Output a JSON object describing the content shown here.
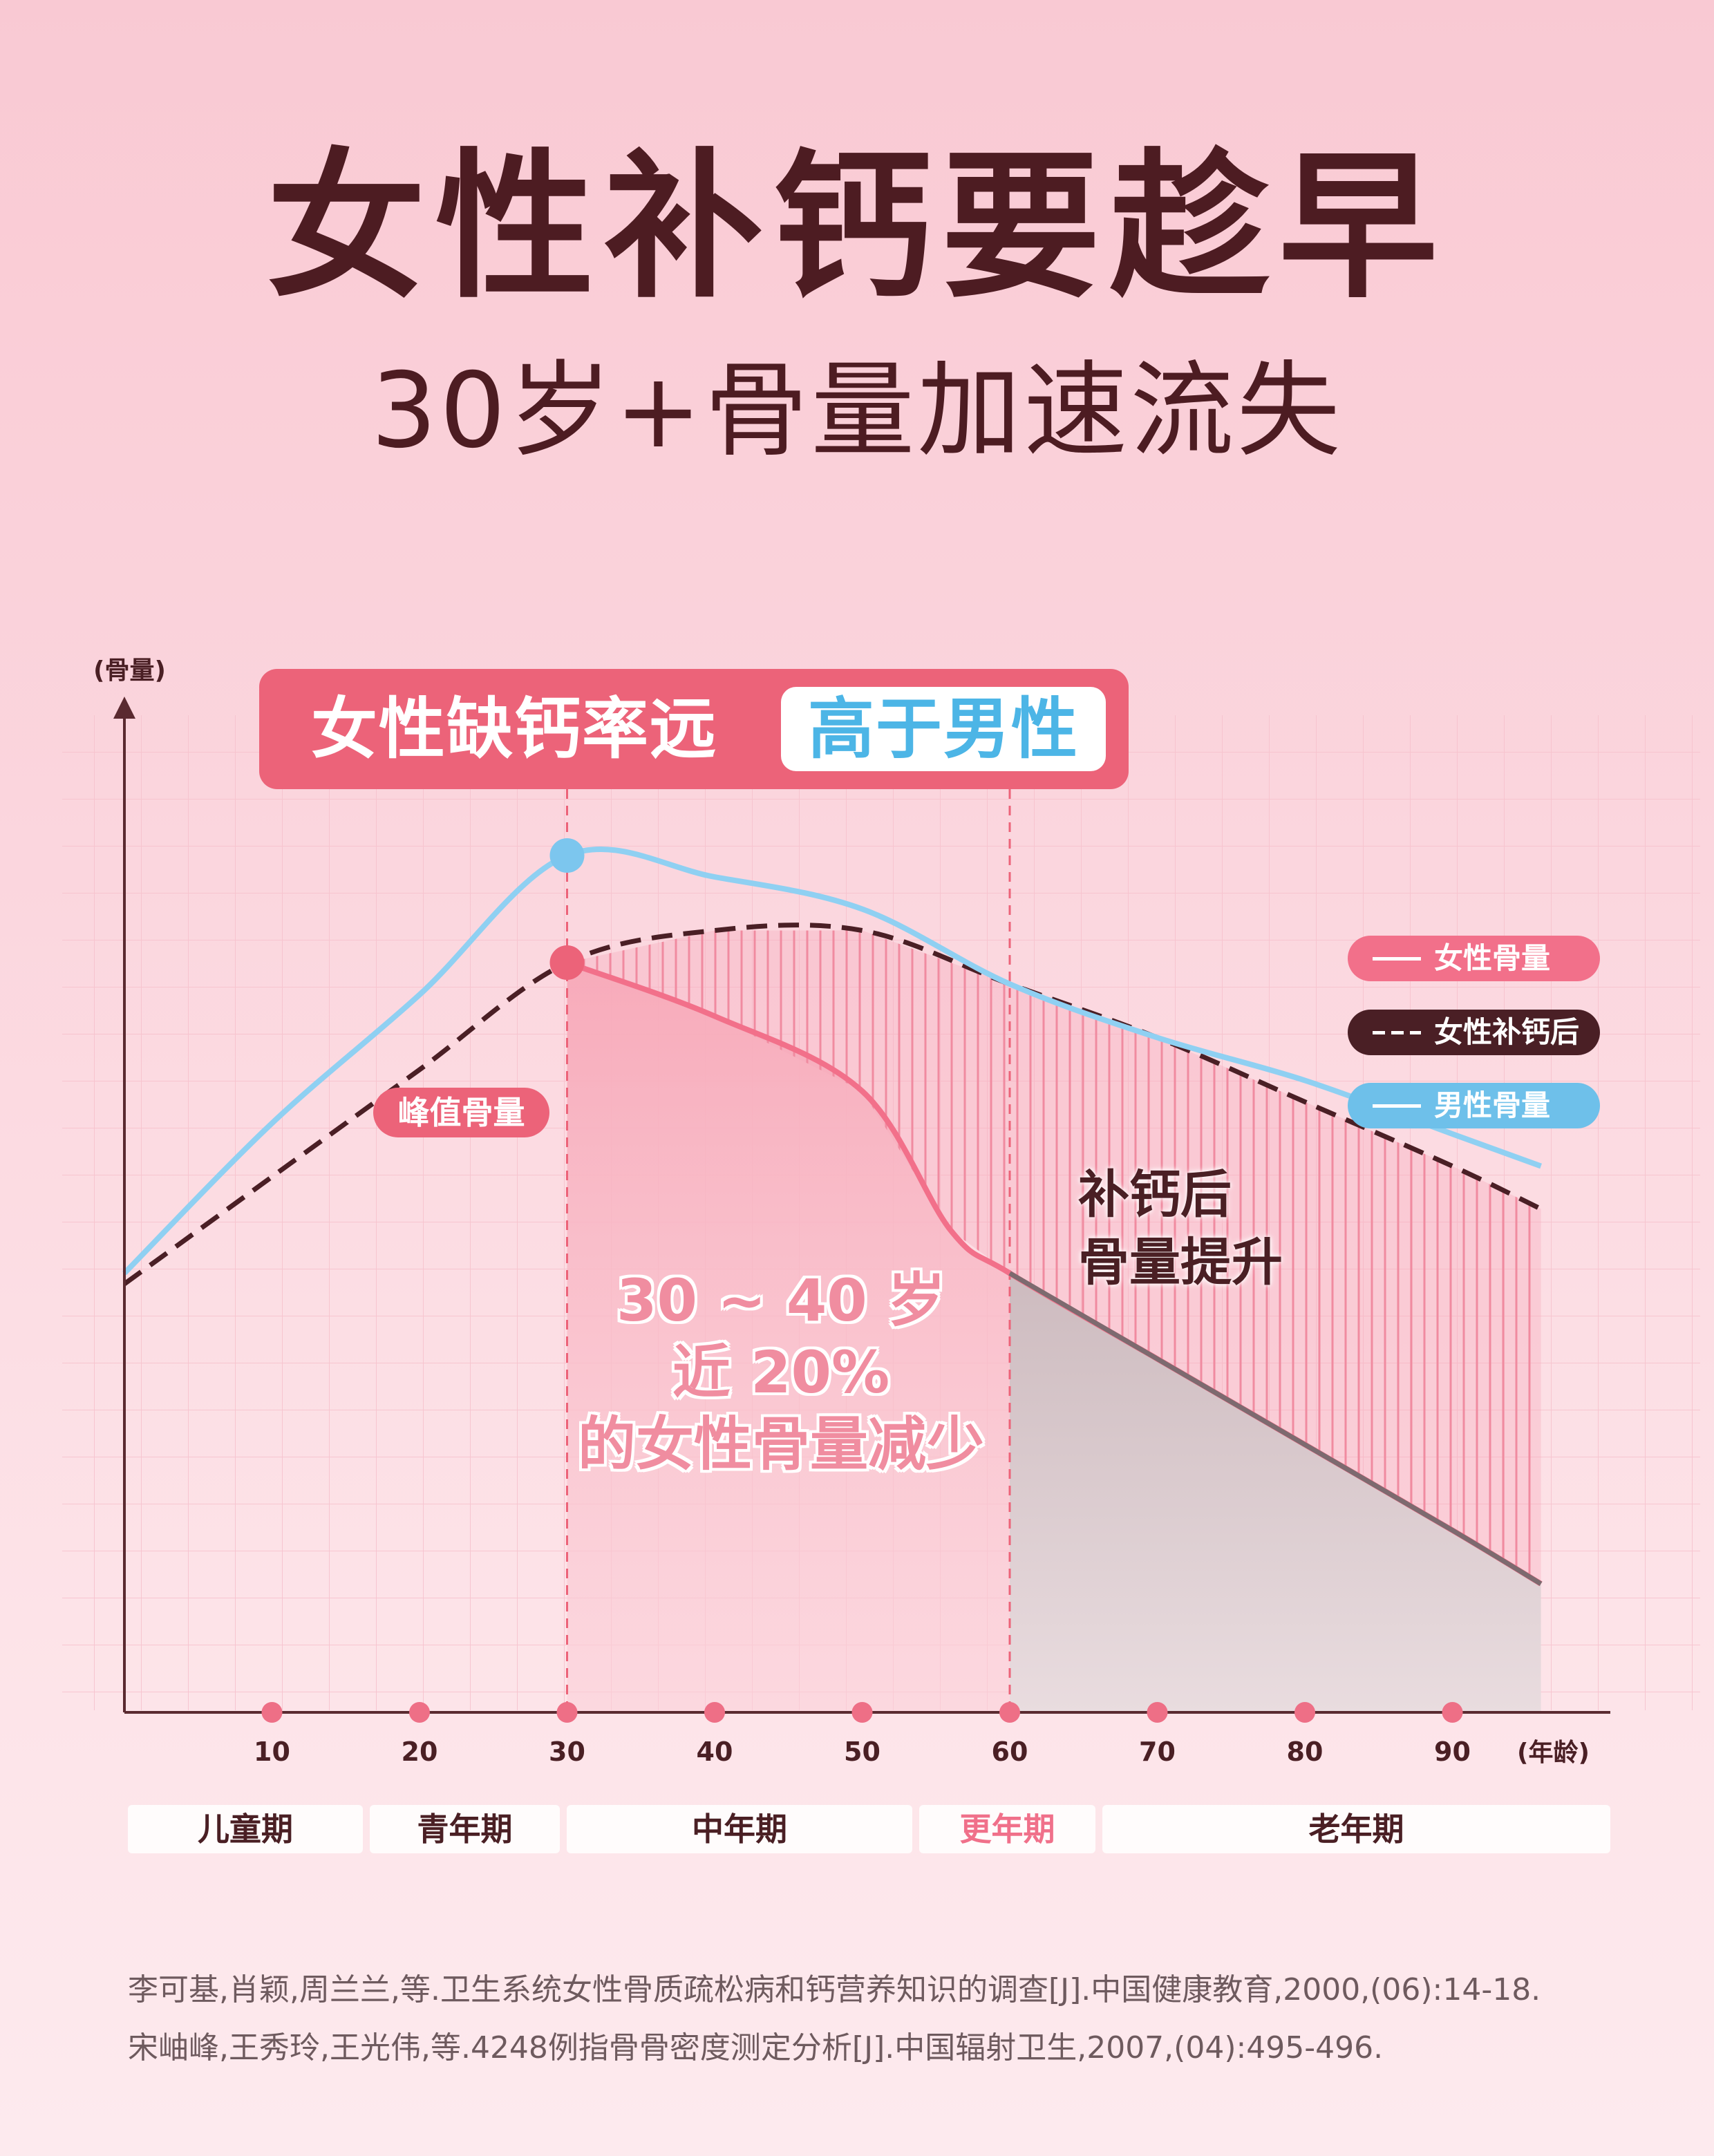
{
  "title": "女性补钙要趁早",
  "subtitle": "30岁+骨量加速流失",
  "banner": {
    "left": "女性缺钙率远",
    "right": "高于男性"
  },
  "chart_data": {
    "type": "line",
    "ylabel": "(骨量)",
    "xlabel": "(年龄)",
    "x_ticks": [
      10,
      20,
      30,
      40,
      50,
      60,
      70,
      80,
      90
    ],
    "xlim": [
      0,
      100
    ],
    "ylim": [
      0,
      100
    ],
    "grid": true,
    "legend_position": "right",
    "series": [
      {
        "name": "女性骨量",
        "color": "#f2708a",
        "style": "solid",
        "points": [
          [
            30,
            70
          ],
          [
            40,
            65
          ],
          [
            50,
            58
          ],
          [
            56,
            45
          ],
          [
            60,
            41
          ],
          [
            70,
            33
          ],
          [
            80,
            25
          ],
          [
            90,
            17
          ],
          [
            96,
            12
          ]
        ]
      },
      {
        "name": "女性补钙后",
        "color": "#4a1f25",
        "style": "dashed",
        "points": [
          [
            0,
            40
          ],
          [
            10,
            50
          ],
          [
            20,
            60
          ],
          [
            30,
            70
          ],
          [
            40,
            73
          ],
          [
            50,
            73
          ],
          [
            60,
            68
          ],
          [
            70,
            63
          ],
          [
            80,
            57
          ],
          [
            90,
            51
          ],
          [
            96,
            47
          ]
        ]
      },
      {
        "name": "男性骨量",
        "color": "#8fd0f2",
        "style": "solid",
        "points": [
          [
            0,
            41
          ],
          [
            10,
            55
          ],
          [
            20,
            67
          ],
          [
            30,
            80
          ],
          [
            40,
            78
          ],
          [
            50,
            75
          ],
          [
            60,
            68
          ],
          [
            70,
            63
          ],
          [
            80,
            59
          ],
          [
            90,
            54
          ],
          [
            96,
            51
          ]
        ]
      }
    ],
    "highlight_ranges": [
      [
        30,
        60
      ]
    ],
    "markers": [
      {
        "x": 30,
        "y": 80,
        "color": "#7cc6ee"
      },
      {
        "x": 30,
        "y": 70,
        "color": "#ec6379"
      }
    ]
  },
  "peak_label": "峰值骨量",
  "annotations": {
    "after_line1": "补钙后",
    "after_line2": "骨量提升",
    "range_line1": "30 ~ 40 岁",
    "range_line2": "近 20%",
    "range_line3": "的女性骨量减少"
  },
  "stages": [
    {
      "label": "儿童期",
      "highlight": false
    },
    {
      "label": "青年期",
      "highlight": false
    },
    {
      "label": "中年期",
      "highlight": false
    },
    {
      "label": "更年期",
      "highlight": true
    },
    {
      "label": "老年期",
      "highlight": false
    }
  ],
  "references": [
    "李可基,肖颖,周兰兰,等.卫生系统女性骨质疏松病和钙营养知识的调查[J].中国健康教育,2000,(06):14-18.",
    "宋岫峰,王秀玲,王光伟,等.4248例指骨骨密度测定分析[J].中国辐射卫生,2007,(04):495-496."
  ]
}
